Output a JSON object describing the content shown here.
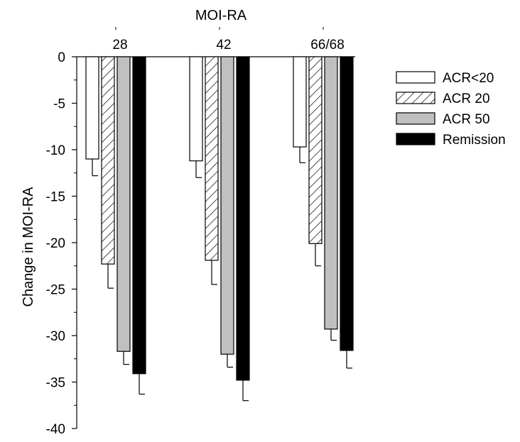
{
  "chart_data": {
    "type": "bar",
    "title": "MOI-RA",
    "ylabel": "Change in MOI-RA",
    "xlabel": "",
    "categories": [
      "28",
      "42",
      "66/68"
    ],
    "ylim": [
      -40,
      0
    ],
    "y_ticks": [
      "0",
      "-5",
      "-10",
      "-15",
      "-20",
      "-25",
      "-30",
      "-35",
      "-40"
    ],
    "category_axis_position": "top",
    "grid": false,
    "legend_position": "right",
    "series": [
      {
        "name": "ACR<20",
        "values": [
          -11.0,
          -11.2,
          -9.7
        ],
        "errors": [
          1.8,
          1.8,
          1.7
        ],
        "fill": "#ffffff",
        "pattern": "none"
      },
      {
        "name": "ACR 20",
        "values": [
          -22.3,
          -21.9,
          -20.1
        ],
        "errors": [
          2.6,
          2.6,
          2.4
        ],
        "fill": "#ffffff",
        "pattern": "hatch"
      },
      {
        "name": "ACR 50",
        "values": [
          -31.7,
          -32.0,
          -29.3
        ],
        "errors": [
          1.4,
          1.4,
          1.2
        ],
        "fill": "#c0c0c0",
        "pattern": "none"
      },
      {
        "name": "Remission",
        "values": [
          -34.1,
          -34.8,
          -31.6
        ],
        "errors": [
          2.2,
          2.2,
          1.9
        ],
        "fill": "#000000",
        "pattern": "none"
      }
    ]
  }
}
